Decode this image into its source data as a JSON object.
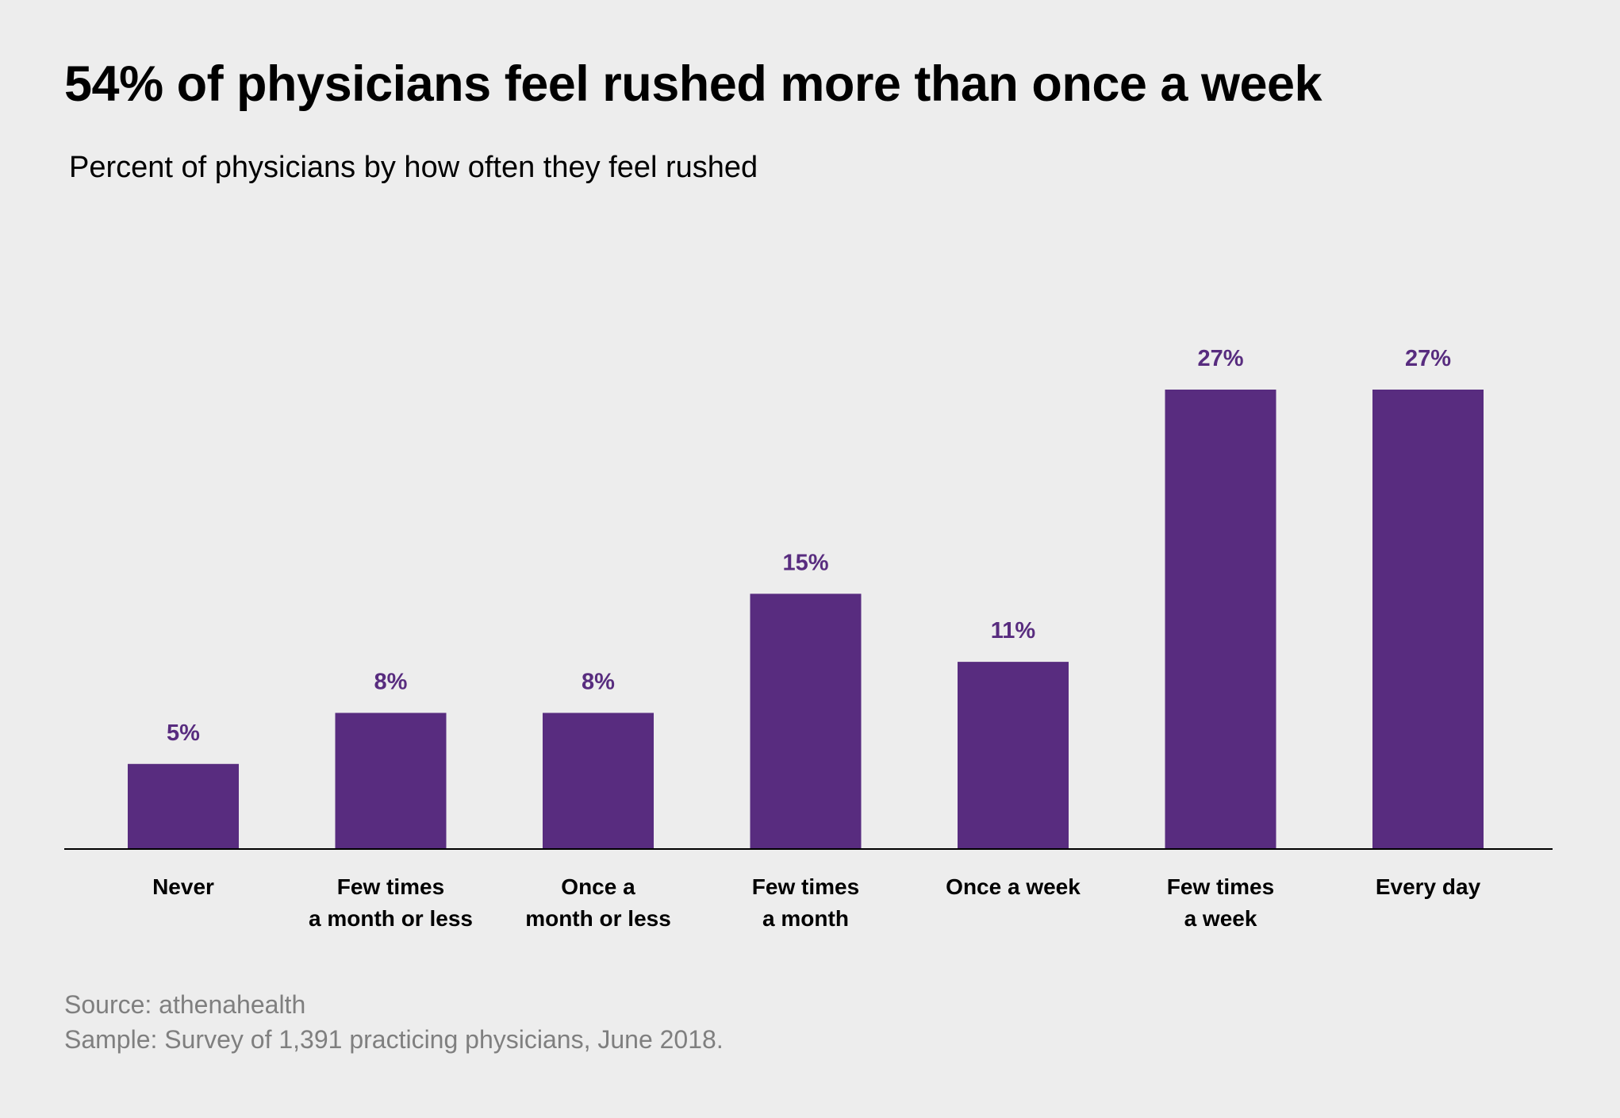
{
  "chart_data": {
    "type": "bar",
    "title": "54% of physicians feel rushed more than once a week",
    "subtitle": "Percent of physicians by how often they feel rushed",
    "categories": [
      [
        "Never"
      ],
      [
        "Few times",
        "a month or less"
      ],
      [
        "Once a",
        "month or less"
      ],
      [
        "Few times",
        "a month"
      ],
      [
        "Once a week"
      ],
      [
        "Few times",
        "a week"
      ],
      [
        "Every day"
      ]
    ],
    "values": [
      5,
      8,
      8,
      15,
      11,
      27,
      27
    ],
    "data_labels": [
      "5%",
      "8%",
      "8%",
      "15%",
      "11%",
      "27%",
      "27%"
    ],
    "unit": "%",
    "ylim": [
      0,
      27
    ],
    "grid": false,
    "legend": "none",
    "bar_color": "#582c7f",
    "label_color": "#582c7f"
  },
  "footer": {
    "source": "Source: athenahealth",
    "sample": "Sample: Survey of 1,391 practicing physicians, June 2018."
  }
}
